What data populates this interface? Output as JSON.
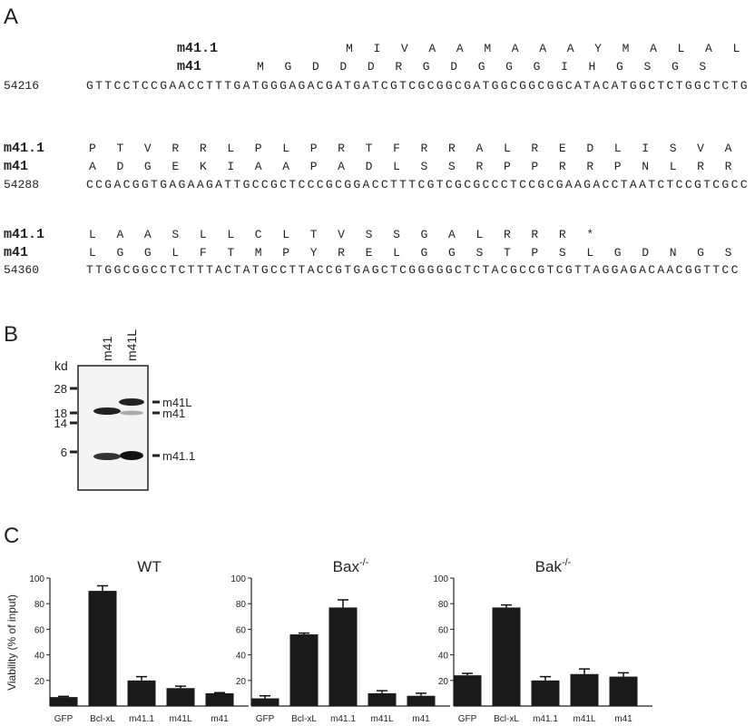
{
  "panel_a": {
    "label": "A",
    "rows": [
      {
        "number": 54216,
        "m41_1_label": "m41.1",
        "m41_1": "M I V A A M A A A Y M A L A L",
        "m41_label": "m41",
        "m41": "M G D D D R G D G G G I H G S G S",
        "dna": "GTTCCTCCGAACCTTTGATGGGAGACGATGATCGTCGCGGCGATGGCGGCGGCATACATGGCTCTGGCTCTG"
      },
      {
        "number": 54288,
        "m41_1_label": "m41.1",
        "m41_1": "P T V R R L P L P R T F R R A L R E D L I S V A",
        "m41_label": "m41",
        "m41": "A D G E K I A A P A D L S S R P P R R P N L R R",
        "dna": "CCGACGGTGAGAAGATTGCCGCTCCCGCGGACCTTTCGTCGCGCCCTCCGCGAAGACCTAATCTCCGTCGCC"
      },
      {
        "number": 54360,
        "m41_1_label": "m41.1",
        "m41_1": "L A A S L L C L T V S S G A L R R R *",
        "m41_label": "m41",
        "m41": "L G G L F T M P Y R E L G G S T P S L G D N G S",
        "dna": "TTGGCGGCCTCTTTACTATGCCTTACCGTGAGCTCGGGGGCTCTACGCCGTCGTTAGGAGACAACGGTTCC"
      }
    ]
  },
  "panel_b": {
    "label": "B",
    "unit": "kd",
    "lanes": [
      "m41",
      "m41L"
    ],
    "markers": [
      28,
      18,
      14,
      6
    ],
    "bands": [
      "m41L",
      "m41",
      "m41.1"
    ]
  },
  "panel_c": {
    "label": "C",
    "ylabel": "Viability (% of input)"
  },
  "chart_data": [
    {
      "type": "bar",
      "title": "WT",
      "categories": [
        "GFP",
        "Bcl-xL",
        "m41.1",
        "m41L",
        "m41"
      ],
      "values": [
        7,
        90,
        20,
        14,
        10
      ],
      "errors": [
        0.5,
        4,
        3,
        1.5,
        0.5
      ],
      "color": "#1a1a1a",
      "ylim": [
        0,
        100
      ],
      "yticks": [
        20,
        40,
        60,
        80,
        100
      ]
    },
    {
      "type": "bar",
      "title": "Bax",
      "title_superscript": "-/-",
      "categories": [
        "GFP",
        "Bcl-xL",
        "m41.1",
        "m41L",
        "m41"
      ],
      "values": [
        6,
        56,
        77,
        10,
        8
      ],
      "errors": [
        2,
        1,
        6,
        2,
        2
      ],
      "color": "#1a1a1a",
      "ylim": [
        0,
        100
      ],
      "yticks": [
        20,
        40,
        60,
        80,
        100
      ]
    },
    {
      "type": "bar",
      "title": "Bak",
      "title_superscript": "-/-",
      "categories": [
        "GFP",
        "Bcl-xL",
        "m41.1",
        "m41L",
        "m41"
      ],
      "values": [
        24,
        77,
        20,
        25,
        23
      ],
      "errors": [
        1.5,
        2,
        3,
        4,
        3
      ],
      "color": "#1a1a1a",
      "ylim": [
        0,
        100
      ],
      "yticks": [
        20,
        40,
        60,
        80,
        100
      ]
    }
  ]
}
